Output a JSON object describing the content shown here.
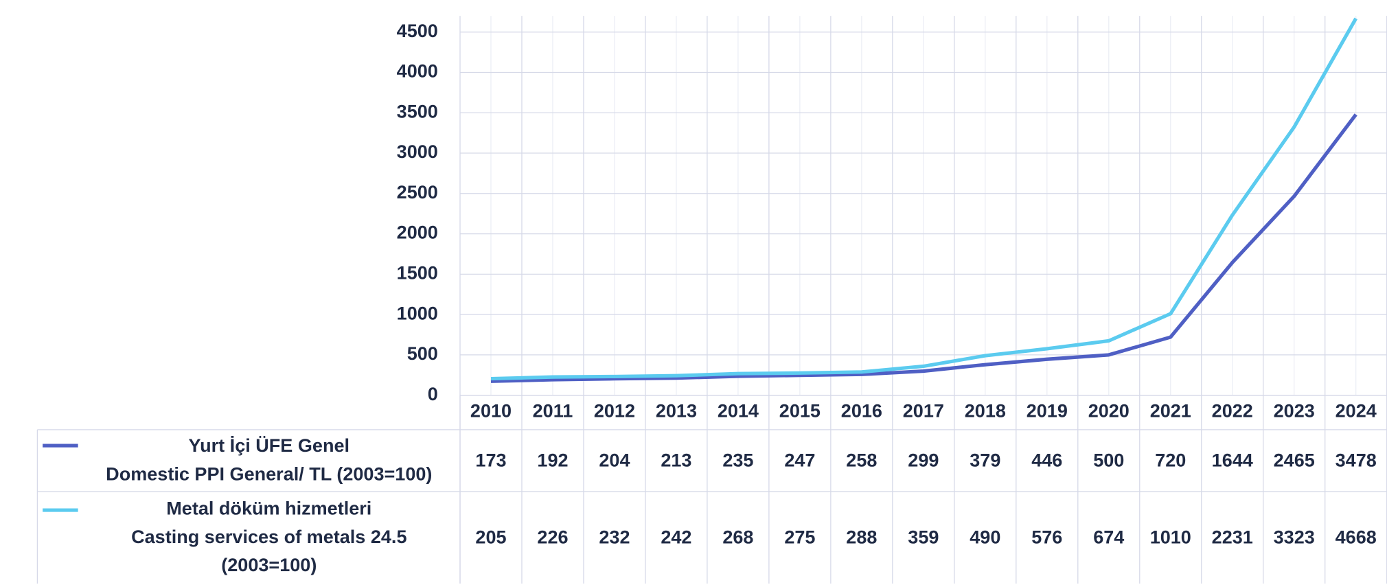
{
  "chart_data": {
    "type": "line",
    "categories": [
      "2010",
      "2011",
      "2012",
      "2013",
      "2014",
      "2015",
      "2016",
      "2017",
      "2018",
      "2019",
      "2020",
      "2021",
      "2022",
      "2023",
      "2024"
    ],
    "series": [
      {
        "name": "Yurt İçi ÜFE Genel\nDomestic PPI General/ TL   (2003=100)",
        "color": "#4f5fc4",
        "values": [
          173,
          192,
          204,
          213,
          235,
          247,
          258,
          299,
          379,
          446,
          500,
          720,
          1644,
          2465,
          3478
        ]
      },
      {
        "name": "Metal döküm hizmetleri\nCasting services of metals 24.5\n(2003=100)",
        "color": "#5bcbef",
        "values": [
          205,
          226,
          232,
          242,
          268,
          275,
          288,
          359,
          490,
          576,
          674,
          1010,
          2231,
          3323,
          4668
        ]
      }
    ],
    "ylim": [
      0,
      4700
    ],
    "yticks": [
      0,
      500,
      1000,
      1500,
      2000,
      2500,
      3000,
      3500,
      4000,
      4500
    ],
    "grid": true
  }
}
